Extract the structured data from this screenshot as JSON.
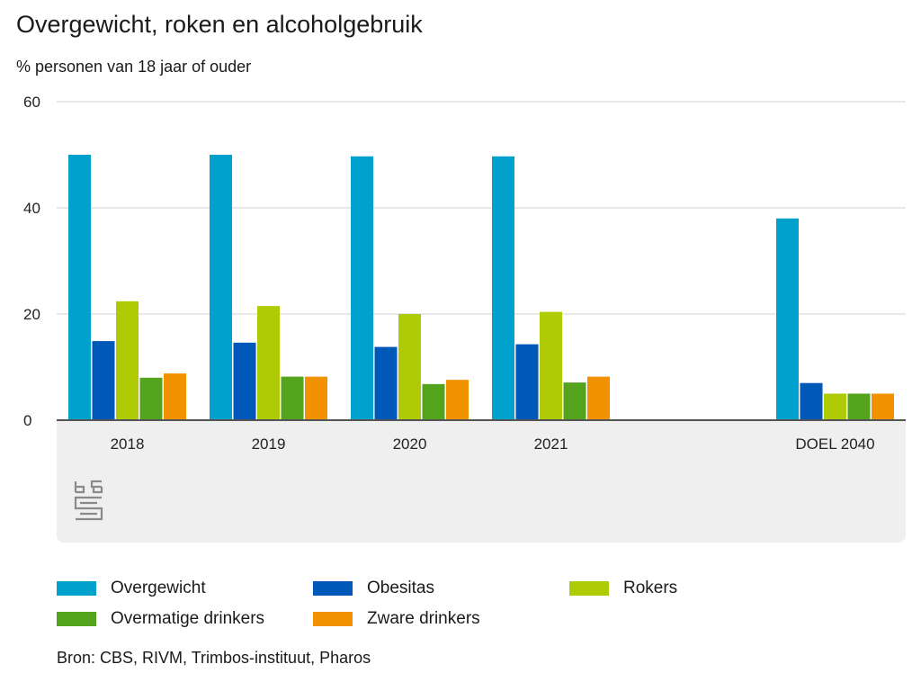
{
  "header": {
    "title": "Overgewicht, roken en alcoholgebruik",
    "subtitle": "% personen van 18 jaar of ouder"
  },
  "chart_data": {
    "type": "bar",
    "title": "Overgewicht, roken en alcoholgebruik",
    "ylabel": "% personen van 18 jaar of ouder",
    "xlabel": "",
    "ylim": [
      0,
      60
    ],
    "yticks": [
      0,
      20,
      40,
      60
    ],
    "grid": true,
    "legend_position": "bottom",
    "categories": [
      "2018",
      "2019",
      "2020",
      "2021",
      "DOEL 2040"
    ],
    "series": [
      {
        "name": "Overgewicht",
        "color": "#00a1cd",
        "values": [
          50.0,
          50.0,
          49.7,
          49.7,
          38.0
        ]
      },
      {
        "name": "Obesitas",
        "color": "#0058b8",
        "values": [
          14.9,
          14.6,
          13.8,
          14.3,
          7.0
        ]
      },
      {
        "name": "Rokers",
        "color": "#afcb05",
        "values": [
          22.4,
          21.5,
          20.0,
          20.4,
          5.0
        ]
      },
      {
        "name": "Overmatige drinkers",
        "color": "#53a31d",
        "values": [
          8.0,
          8.2,
          6.8,
          7.1,
          5.0
        ]
      },
      {
        "name": "Zware drinkers",
        "color": "#f39200",
        "values": [
          8.8,
          8.2,
          7.6,
          8.2,
          5.0
        ]
      }
    ],
    "source": "Bron: CBS, RIVM, Trimbos-instituut, Pharos"
  },
  "logo": {
    "icon": "cbs-logo-icon",
    "text": "cbs"
  },
  "colors": {
    "panel_bg": "#efefef",
    "grid": "#d0d0d0",
    "axis": "#555555"
  }
}
